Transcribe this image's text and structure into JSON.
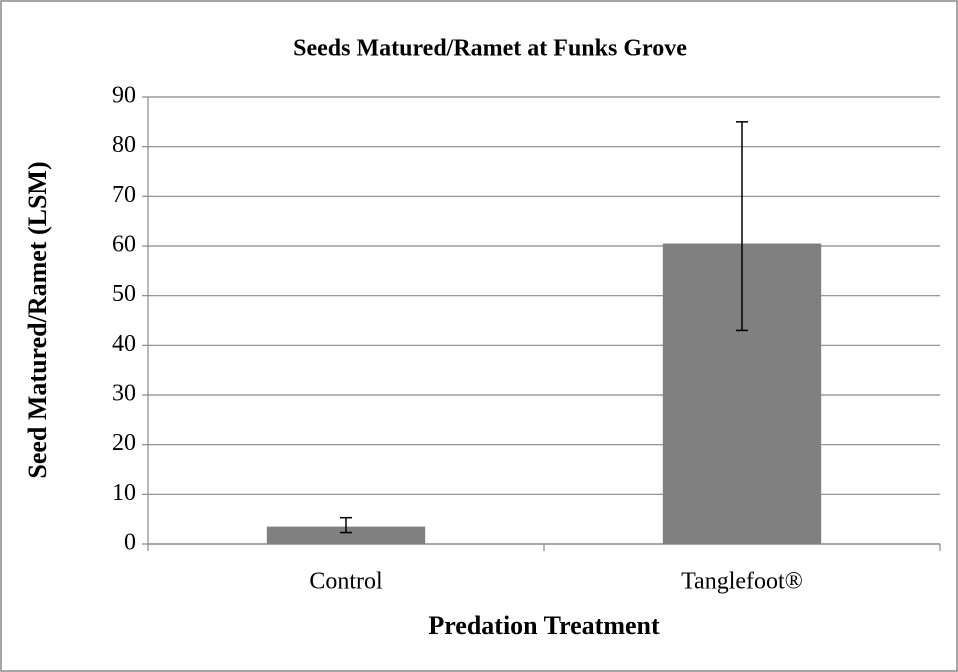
{
  "chart_data": {
    "type": "bar",
    "title": "Seeds Matured/Ramet at Funks Grove",
    "x_label": "Predation Treatment",
    "y_label": "Seed Matured/Ramet (LSM)",
    "categories": [
      "Control",
      "Tanglefoot®"
    ],
    "values": [
      3.5,
      60.5
    ],
    "error_minus": [
      1.2,
      17.5
    ],
    "error_plus": [
      1.8,
      24.5
    ],
    "color": "#808080",
    "ylim": [
      0,
      90
    ],
    "yticks": [
      0,
      10,
      20,
      30,
      40,
      50,
      60,
      70,
      80,
      90
    ],
    "grid": true
  }
}
